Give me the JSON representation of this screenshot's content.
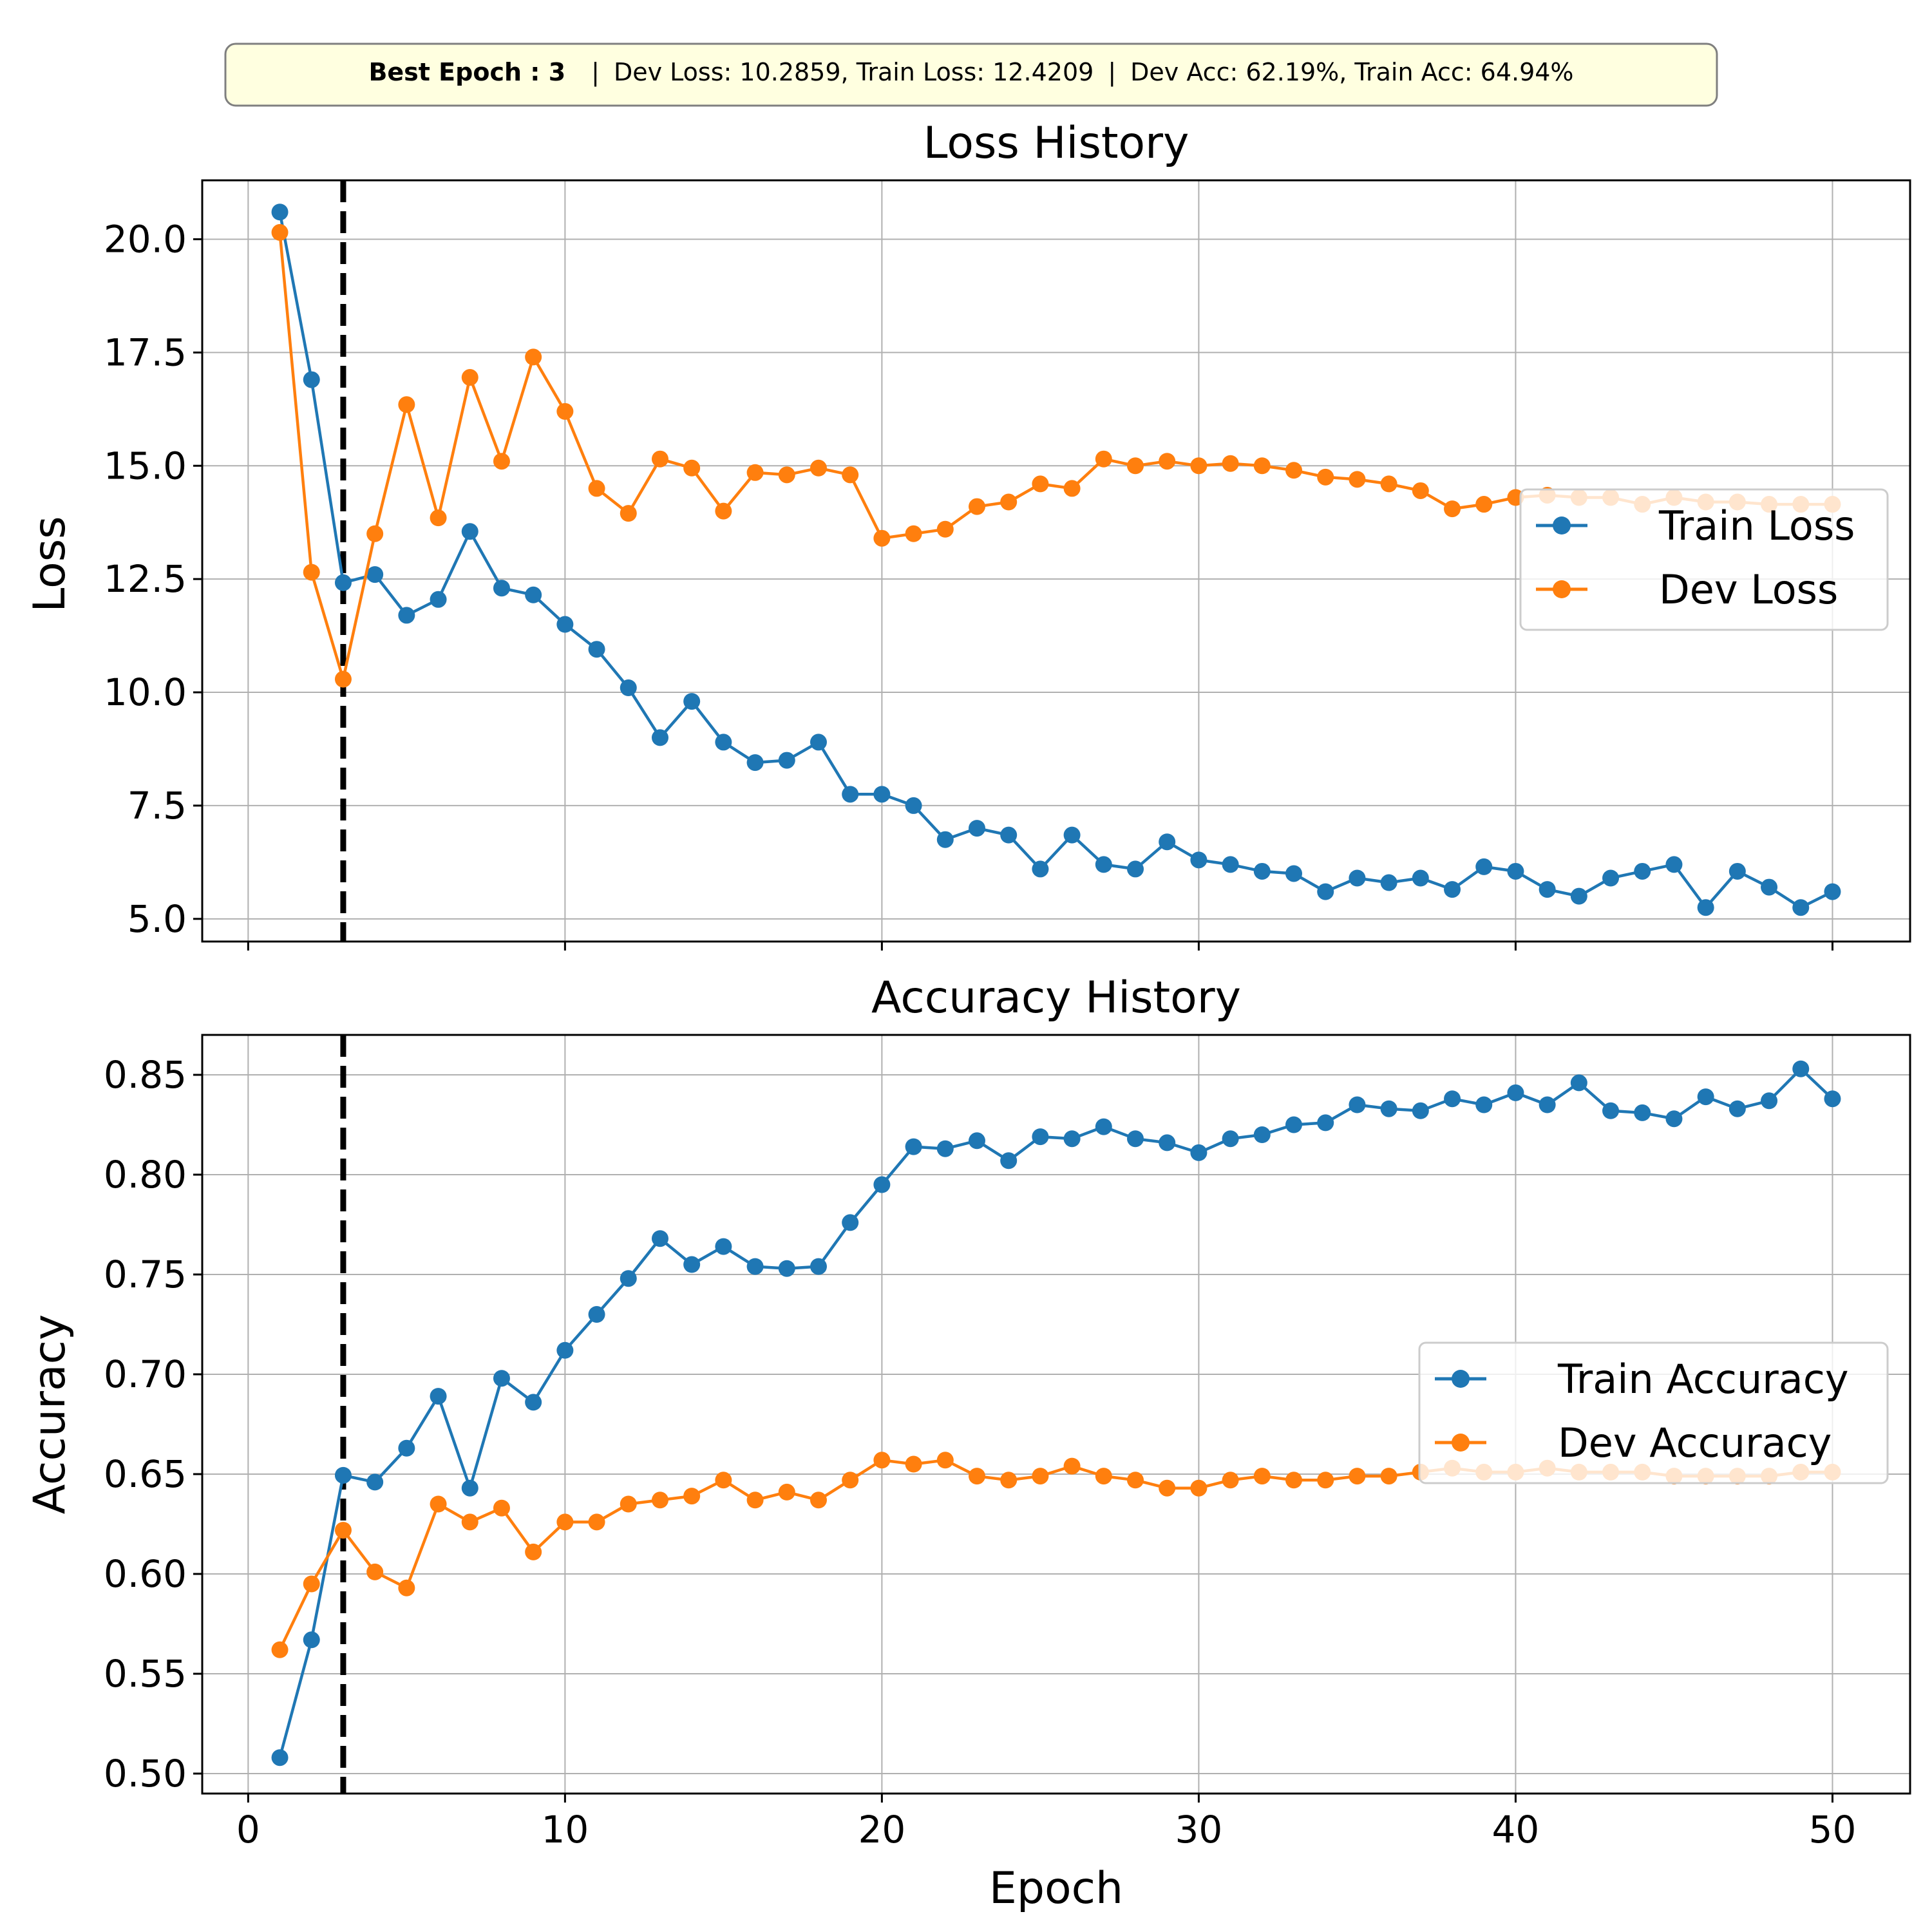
{
  "banner": {
    "best_label": "Best Epoch",
    "best_epoch": "3",
    "separator": "|",
    "losses": "Dev Loss: 10.2859, Train Loss: 12.4209",
    "accs": "Dev Acc: 62.19%, Train Acc: 64.94%"
  },
  "colors": {
    "train": "#1f77b4",
    "dev": "#ff7f0e",
    "grid": "#b0b0b0",
    "best_line": "#000000",
    "banner_bg": "#ffffe0"
  },
  "chart_data": [
    {
      "type": "line",
      "title": "Loss History",
      "xlabel": "",
      "ylabel": "Loss",
      "xlim": [
        -1.45,
        52.45
      ],
      "ylim": [
        4.5,
        21.3
      ],
      "xticks": [
        0,
        10,
        20,
        30,
        40,
        50
      ],
      "xtick_labels": [
        "",
        "",
        "",
        "",
        "",
        ""
      ],
      "yticks": [
        5.0,
        7.5,
        10.0,
        12.5,
        15.0,
        17.5,
        20.0
      ],
      "ytick_labels": [
        "5.0",
        "7.5",
        "10.0",
        "12.5",
        "15.0",
        "17.5",
        "20.0"
      ],
      "grid": true,
      "legend": "center-right",
      "best_epoch_line": 3,
      "x": [
        1,
        2,
        3,
        4,
        5,
        6,
        7,
        8,
        9,
        10,
        11,
        12,
        13,
        14,
        15,
        16,
        17,
        18,
        19,
        20,
        21,
        22,
        23,
        24,
        25,
        26,
        27,
        28,
        29,
        30,
        31,
        32,
        33,
        34,
        35,
        36,
        37,
        38,
        39,
        40,
        41,
        42,
        43,
        44,
        45,
        46,
        47,
        48,
        49,
        50
      ],
      "series": [
        {
          "name": "Train Loss",
          "color_key": "train",
          "values": [
            20.6,
            16.9,
            12.42,
            12.6,
            11.7,
            12.05,
            13.55,
            12.3,
            12.15,
            11.5,
            10.95,
            10.1,
            9.0,
            9.8,
            8.9,
            8.45,
            8.5,
            8.9,
            7.75,
            7.75,
            7.5,
            6.75,
            7.0,
            6.85,
            6.1,
            6.85,
            6.2,
            6.1,
            6.7,
            6.3,
            6.2,
            6.05,
            6.0,
            5.6,
            5.9,
            5.8,
            5.9,
            5.65,
            6.15,
            6.05,
            5.65,
            5.5,
            5.9,
            6.05,
            6.2,
            5.25,
            6.05,
            5.7,
            5.25,
            5.6
          ]
        },
        {
          "name": "Dev Loss",
          "color_key": "dev",
          "values": [
            20.15,
            12.65,
            10.29,
            13.5,
            16.35,
            13.85,
            16.95,
            15.1,
            17.4,
            16.2,
            14.5,
            13.95,
            15.15,
            14.95,
            14.0,
            14.85,
            14.8,
            14.95,
            14.8,
            13.4,
            13.5,
            13.6,
            14.1,
            14.2,
            14.6,
            14.5,
            15.15,
            15.0,
            15.1,
            15.0,
            15.05,
            15.0,
            14.9,
            14.75,
            14.7,
            14.6,
            14.45,
            14.05,
            14.15,
            14.3,
            14.35,
            14.3,
            14.3,
            14.15,
            14.3,
            14.2,
            14.2,
            14.15,
            14.15,
            14.15
          ]
        }
      ]
    },
    {
      "type": "line",
      "title": "Accuracy History",
      "xlabel": "Epoch",
      "ylabel": "Accuracy",
      "xlim": [
        -1.45,
        52.45
      ],
      "ylim": [
        0.49,
        0.87
      ],
      "xticks": [
        0,
        10,
        20,
        30,
        40,
        50
      ],
      "xtick_labels": [
        "0",
        "10",
        "20",
        "30",
        "40",
        "50"
      ],
      "yticks": [
        0.5,
        0.55,
        0.6,
        0.65,
        0.7,
        0.75,
        0.8,
        0.85
      ],
      "ytick_labels": [
        "0.50",
        "0.55",
        "0.60",
        "0.65",
        "0.70",
        "0.75",
        "0.80",
        "0.85"
      ],
      "grid": true,
      "legend": "center-right",
      "best_epoch_line": 3,
      "x": [
        1,
        2,
        3,
        4,
        5,
        6,
        7,
        8,
        9,
        10,
        11,
        12,
        13,
        14,
        15,
        16,
        17,
        18,
        19,
        20,
        21,
        22,
        23,
        24,
        25,
        26,
        27,
        28,
        29,
        30,
        31,
        32,
        33,
        34,
        35,
        36,
        37,
        38,
        39,
        40,
        41,
        42,
        43,
        44,
        45,
        46,
        47,
        48,
        49,
        50
      ],
      "series": [
        {
          "name": "Train Accuracy",
          "color_key": "train",
          "values": [
            0.508,
            0.567,
            0.6494,
            0.646,
            0.663,
            0.689,
            0.643,
            0.698,
            0.686,
            0.712,
            0.73,
            0.748,
            0.768,
            0.755,
            0.764,
            0.754,
            0.753,
            0.754,
            0.776,
            0.795,
            0.814,
            0.813,
            0.817,
            0.807,
            0.819,
            0.818,
            0.824,
            0.818,
            0.816,
            0.811,
            0.818,
            0.82,
            0.825,
            0.826,
            0.835,
            0.833,
            0.832,
            0.838,
            0.835,
            0.841,
            0.835,
            0.846,
            0.832,
            0.831,
            0.828,
            0.839,
            0.833,
            0.837,
            0.853,
            0.838
          ]
        },
        {
          "name": "Dev Accuracy",
          "color_key": "dev",
          "values": [
            0.562,
            0.595,
            0.6219,
            0.601,
            0.593,
            0.635,
            0.626,
            0.633,
            0.611,
            0.626,
            0.626,
            0.635,
            0.637,
            0.639,
            0.647,
            0.637,
            0.641,
            0.637,
            0.647,
            0.657,
            0.655,
            0.657,
            0.649,
            0.647,
            0.649,
            0.654,
            0.649,
            0.647,
            0.643,
            0.643,
            0.647,
            0.649,
            0.647,
            0.647,
            0.649,
            0.649,
            0.651,
            0.653,
            0.651,
            0.651,
            0.653,
            0.651,
            0.651,
            0.651,
            0.649,
            0.649,
            0.649,
            0.649,
            0.651,
            0.651
          ]
        }
      ]
    }
  ]
}
